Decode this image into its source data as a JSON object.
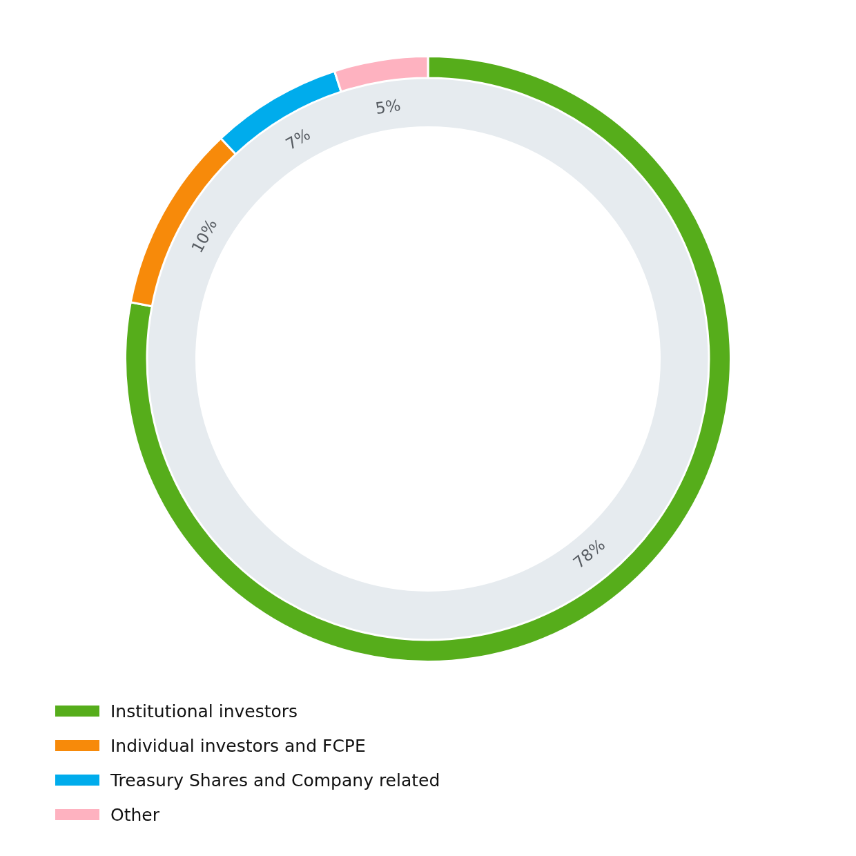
{
  "chart_data": {
    "type": "donut",
    "categories": [
      "Institutional investors",
      "Individual investors and FCPE",
      "Treasury Shares and Company related",
      "Other"
    ],
    "values": [
      78,
      10,
      7,
      5
    ],
    "colors": [
      "#56ad1b",
      "#f78a0a",
      "#00acec",
      "#feb2c0"
    ],
    "value_labels": [
      "78%",
      "10%",
      "7%",
      "5%"
    ],
    "legend": "bottom left"
  }
}
